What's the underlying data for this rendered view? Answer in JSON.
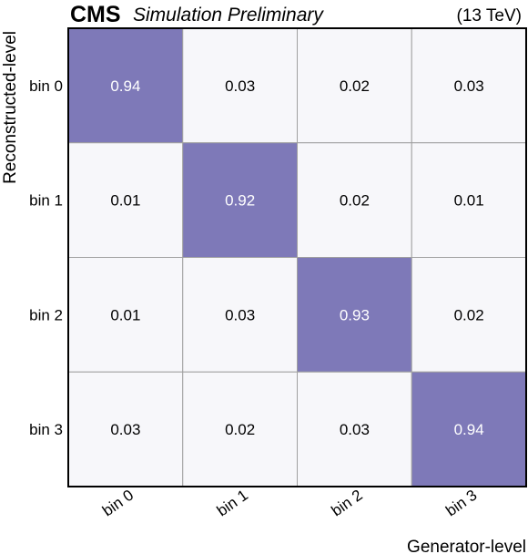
{
  "header": {
    "experiment": "CMS",
    "status": "Simulation Preliminary",
    "energy": "(13 TeV)"
  },
  "chart_data": {
    "type": "heatmap",
    "xlabel": "Generator-level",
    "ylabel": "Reconstructed-level",
    "x_categories": [
      "bin 0",
      "bin 1",
      "bin 2",
      "bin 3"
    ],
    "y_categories": [
      "bin 0",
      "bin 1",
      "bin 2",
      "bin 3"
    ],
    "values": [
      [
        0.94,
        0.03,
        0.02,
        0.03
      ],
      [
        0.01,
        0.92,
        0.02,
        0.01
      ],
      [
        0.01,
        0.03,
        0.93,
        0.02
      ],
      [
        0.03,
        0.02,
        0.03,
        0.94
      ]
    ],
    "value_labels": [
      [
        "0.94",
        "0.03",
        "0.02",
        "0.03"
      ],
      [
        "0.01",
        "0.92",
        "0.02",
        "0.01"
      ],
      [
        "0.01",
        "0.03",
        "0.93",
        "0.02"
      ],
      [
        "0.03",
        "0.02",
        "0.03",
        "0.94"
      ]
    ],
    "colors": {
      "high": "#7e79b8",
      "low": "#f7f7fa",
      "grid": "#a0a0a0",
      "frame": "#000000"
    }
  }
}
